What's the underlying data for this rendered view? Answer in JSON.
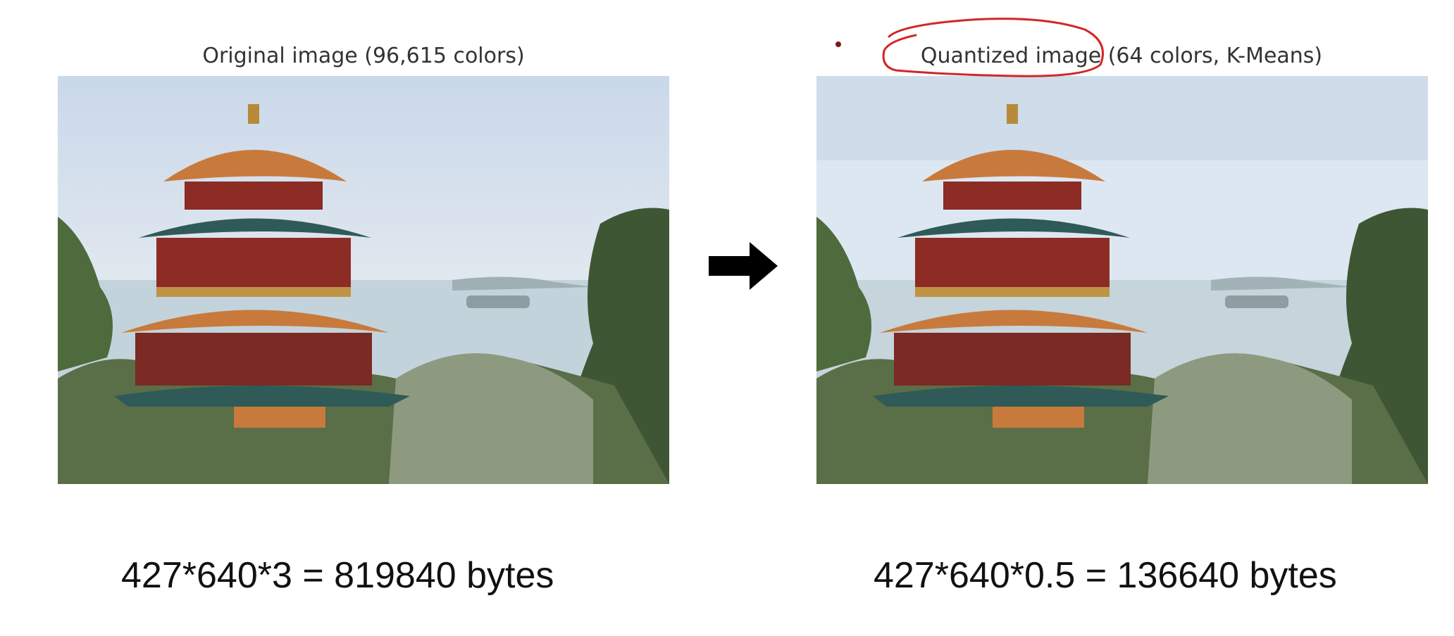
{
  "panels": [
    {
      "title": "Original image (96,615 colors)",
      "equation": "427*640*3 = 819840 bytes"
    },
    {
      "title": "Quantized image (64 colors, K-Means)",
      "equation": "427*640*0.5 = 136640 bytes"
    }
  ],
  "colors": {
    "sky": "#dde7f1",
    "water": "#c3d3dc",
    "tree_dark": "#3f5634",
    "tree_light": "#7c8d62",
    "roof_orange": "#c87a3c",
    "roof_green": "#2f5a58",
    "wall_red": "#8c2c25",
    "annotation_red": "#d32626",
    "arrow": "#000000"
  }
}
